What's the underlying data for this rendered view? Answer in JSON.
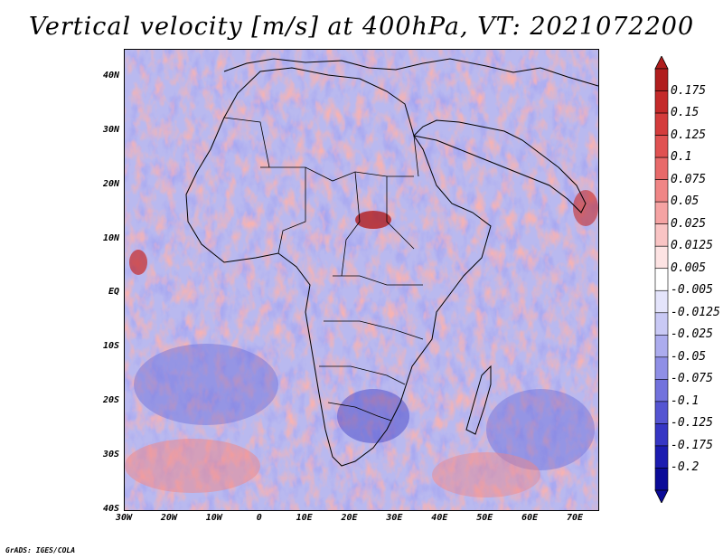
{
  "title": "Vertical velocity [m/s] at 400hPa, VT: 2021072200",
  "credit": "GrADS: IGES/COLA",
  "map": {
    "region": "Africa",
    "lat_range": [
      -40,
      45
    ],
    "lon_range": [
      -30,
      75
    ],
    "lat_labels": [
      "40N",
      "30N",
      "20N",
      "10N",
      "EQ",
      "10S",
      "20S",
      "30S",
      "40S"
    ],
    "lat_values": [
      40,
      30,
      20,
      10,
      0,
      -10,
      -20,
      -30,
      -40
    ],
    "lon_labels": [
      "30W",
      "20W",
      "10W",
      "0",
      "10E",
      "20E",
      "30E",
      "40E",
      "50E",
      "60E",
      "70E"
    ],
    "lon_values": [
      -30,
      -20,
      -10,
      0,
      10,
      20,
      30,
      40,
      50,
      60,
      70
    ]
  },
  "colorbar": {
    "labels": [
      "0.175",
      "0.15",
      "0.125",
      "0.1",
      "0.075",
      "0.05",
      "0.025",
      "0.0125",
      "0.005",
      "-0.005",
      "-0.0125",
      "-0.025",
      "-0.05",
      "-0.075",
      "-0.1",
      "-0.125",
      "-0.175",
      "-0.2"
    ],
    "colors": [
      "#b01e1e",
      "#c42a2a",
      "#d43c3c",
      "#e05252",
      "#e86a6a",
      "#f08686",
      "#f5a3a3",
      "#f9c4c4",
      "#fde3e3",
      "#ffffff",
      "#e4e4fb",
      "#c9c9f5",
      "#acacee",
      "#8f8fe6",
      "#7272dd",
      "#5555d2",
      "#3636c4",
      "#1c1cb0",
      "#0b0b98"
    ]
  },
  "colors": {
    "positive": "#e04040",
    "negative": "#4a4ad8",
    "border": "#000000"
  }
}
